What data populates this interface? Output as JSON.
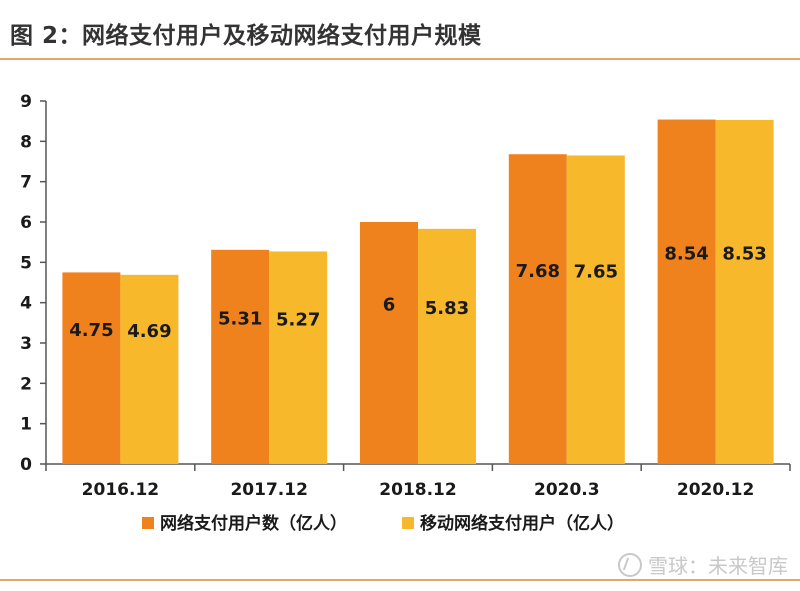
{
  "title": "图 2：网络支付用户及移动网络支付用户规模",
  "watermark": "雪球：未来智库",
  "colors": {
    "series1": "#f0821e",
    "series2": "#f7b92b",
    "rule": "#e3a76a",
    "axis": "#555555"
  },
  "chart_data": {
    "type": "bar",
    "categories": [
      "2016.12",
      "2017.12",
      "2018.12",
      "2020.3",
      "2020.12"
    ],
    "series": [
      {
        "name": "网络支付用户数（亿人）",
        "values": [
          4.75,
          5.31,
          6,
          7.68,
          8.54
        ],
        "labels": [
          "4.75",
          "5.31",
          "6",
          "7.68",
          "8.54"
        ]
      },
      {
        "name": "移动网络支付用户（亿人）",
        "values": [
          4.69,
          5.27,
          5.83,
          7.65,
          8.53
        ],
        "labels": [
          "4.69",
          "5.27",
          "5.83",
          "7.65",
          "8.53"
        ]
      }
    ],
    "yticks": [
      "0",
      "1",
      "2",
      "3",
      "4",
      "5",
      "6",
      "7",
      "8",
      "9"
    ],
    "ylim": [
      0,
      9
    ],
    "legend_position": "bottom",
    "grid": false
  }
}
